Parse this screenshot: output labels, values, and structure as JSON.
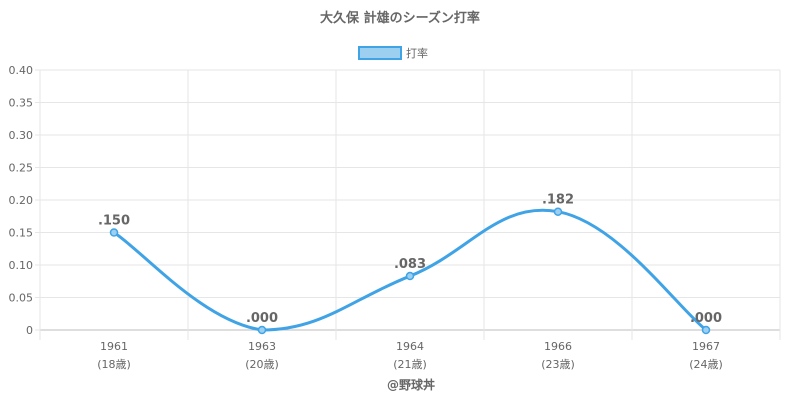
{
  "credit": "@野球丼",
  "chart_data": {
    "type": "line",
    "title": "大久保 計雄のシーズン打率",
    "legend_position": "top",
    "grid": true,
    "categories": [
      "1961",
      "1963",
      "1964",
      "1966",
      "1967"
    ],
    "category_sublabels": [
      "(18歳)",
      "(20歳)",
      "(21歳)",
      "(23歳)",
      "(24歳)"
    ],
    "series": [
      {
        "name": "打率",
        "values": [
          0.15,
          0.0,
          0.083,
          0.182,
          0.0
        ],
        "data_labels": [
          ".150",
          ".000",
          ".083",
          ".182",
          ".000"
        ],
        "color": "#3fa3e6",
        "fill_color": "#9ccff0"
      }
    ],
    "ylim": [
      0,
      0.4
    ],
    "yticks": [
      "0",
      "0.05",
      "0.10",
      "0.15",
      "0.20",
      "0.25",
      "0.30",
      "0.35",
      "0.40"
    ],
    "ytick_values": [
      0,
      0.05,
      0.1,
      0.15,
      0.2,
      0.25,
      0.3,
      0.35,
      0.4
    ],
    "xlabel": "",
    "ylabel": ""
  }
}
